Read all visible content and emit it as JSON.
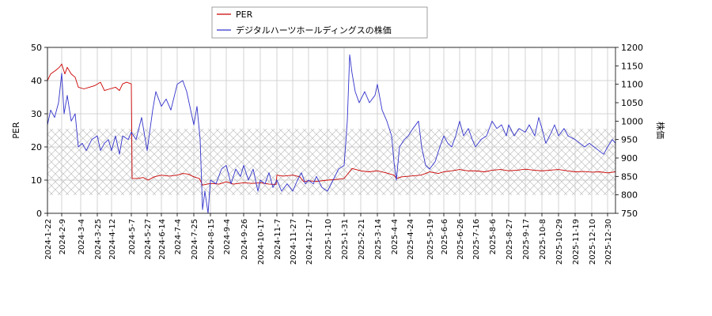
{
  "chart_data": {
    "type": "line",
    "title": "",
    "legend": {
      "placement": "top-center",
      "entries": [
        {
          "name": "PER",
          "color": "#cc0000"
        },
        {
          "name": "デジタルハーツホールディングスの株価",
          "color": "#3333cc"
        }
      ]
    },
    "y_left": {
      "label": "PER",
      "min": 0,
      "max": 50,
      "ticks": [
        0,
        10,
        20,
        30,
        40,
        50
      ]
    },
    "y_right": {
      "label": "株価",
      "min": 750,
      "max": 1200,
      "ticks": [
        750,
        800,
        850,
        900,
        950,
        1000,
        1050,
        1100,
        1150,
        1200
      ]
    },
    "x_range": [
      "2024-01-22",
      "2026-01-09"
    ],
    "x_ticks": [
      "2024-1-22",
      "2024-2-9",
      "2024-3-4",
      "2024-3-25",
      "2024-4-12",
      "2024-5-7",
      "2024-5-27",
      "2024-6-14",
      "2024-7-4",
      "2024-7-25",
      "2024-8-15",
      "2024-9-4",
      "2024-9-26",
      "2024-10-17",
      "2024-11-7",
      "2024-11-27",
      "2024-12-17",
      "2025-1-10",
      "2025-1-31",
      "2025-2-21",
      "2025-3-14",
      "2025-4-4",
      "2025-4-24",
      "2025-5-19",
      "2025-6-6",
      "2025-6-26",
      "2025-7-16",
      "2025-8-6",
      "2025-8-27",
      "2025-9-17",
      "2025-10-8",
      "2025-10-29",
      "2025-11-19",
      "2025-12-10",
      "2025-12-30"
    ],
    "grid": true,
    "band": {
      "from": 5.5,
      "to": 25.5,
      "pattern": "crosshatch"
    },
    "series": [
      {
        "name": "PER",
        "axis": "left",
        "color": "#cc0000",
        "points": [
          [
            "2024-01-22",
            40
          ],
          [
            "2024-01-26",
            42
          ],
          [
            "2024-02-01",
            43
          ],
          [
            "2024-02-06",
            44
          ],
          [
            "2024-02-09",
            45
          ],
          [
            "2024-02-13",
            42
          ],
          [
            "2024-02-16",
            44
          ],
          [
            "2024-02-21",
            42
          ],
          [
            "2024-02-26",
            41
          ],
          [
            "2024-03-01",
            38
          ],
          [
            "2024-03-08",
            37.5
          ],
          [
            "2024-03-15",
            38
          ],
          [
            "2024-03-22",
            38.5
          ],
          [
            "2024-03-29",
            39.5
          ],
          [
            "2024-04-03",
            37
          ],
          [
            "2024-04-10",
            37.5
          ],
          [
            "2024-04-17",
            38
          ],
          [
            "2024-04-22",
            37
          ],
          [
            "2024-04-26",
            39
          ],
          [
            "2024-05-01",
            39.5
          ],
          [
            "2024-05-07",
            39
          ],
          [
            "2024-05-08",
            10.5
          ],
          [
            "2024-05-15",
            10.5
          ],
          [
            "2024-05-22",
            10.8
          ],
          [
            "2024-05-28",
            10
          ],
          [
            "2024-06-05",
            11
          ],
          [
            "2024-06-14",
            11.5
          ],
          [
            "2024-06-24",
            11.2
          ],
          [
            "2024-07-04",
            11.5
          ],
          [
            "2024-07-11",
            12
          ],
          [
            "2024-07-18",
            11.8
          ],
          [
            "2024-07-25",
            11
          ],
          [
            "2024-08-01",
            10.5
          ],
          [
            "2024-08-05",
            8.5
          ],
          [
            "2024-08-15",
            9
          ],
          [
            "2024-08-26",
            8.8
          ],
          [
            "2024-09-04",
            9.5
          ],
          [
            "2024-09-13",
            8.8
          ],
          [
            "2024-09-26",
            9.2
          ],
          [
            "2024-10-07",
            9
          ],
          [
            "2024-10-17",
            9.2
          ],
          [
            "2024-10-28",
            8.8
          ],
          [
            "2024-11-06",
            8.7
          ],
          [
            "2024-11-07",
            11.5
          ],
          [
            "2024-11-15",
            11.2
          ],
          [
            "2024-11-27",
            11.5
          ],
          [
            "2024-12-06",
            11
          ],
          [
            "2024-12-11",
            9.5
          ],
          [
            "2024-12-17",
            9.8
          ],
          [
            "2024-12-27",
            9.6
          ],
          [
            "2025-01-10",
            10
          ],
          [
            "2025-01-21",
            10.2
          ],
          [
            "2025-01-31",
            10.5
          ],
          [
            "2025-02-05",
            12
          ],
          [
            "2025-02-10",
            13.5
          ],
          [
            "2025-02-21",
            12.8
          ],
          [
            "2025-03-03",
            12.5
          ],
          [
            "2025-03-14",
            12.8
          ],
          [
            "2025-03-25",
            12.2
          ],
          [
            "2025-04-04",
            11.5
          ],
          [
            "2025-04-07",
            10.5
          ],
          [
            "2025-04-14",
            11
          ],
          [
            "2025-04-24",
            11.2
          ],
          [
            "2025-05-08",
            11.5
          ],
          [
            "2025-05-14",
            12
          ],
          [
            "2025-05-19",
            12.5
          ],
          [
            "2025-05-30",
            12
          ],
          [
            "2025-06-06",
            12.5
          ],
          [
            "2025-06-16",
            12.8
          ],
          [
            "2025-06-26",
            13.2
          ],
          [
            "2025-07-06",
            12.8
          ],
          [
            "2025-07-16",
            12.8
          ],
          [
            "2025-07-28",
            12.5
          ],
          [
            "2025-08-06",
            13
          ],
          [
            "2025-08-17",
            13.2
          ],
          [
            "2025-08-27",
            12.8
          ],
          [
            "2025-09-07",
            13
          ],
          [
            "2025-09-17",
            13.3
          ],
          [
            "2025-09-28",
            13
          ],
          [
            "2025-10-08",
            12.8
          ],
          [
            "2025-10-18",
            13
          ],
          [
            "2025-10-29",
            13.2
          ],
          [
            "2025-11-09",
            12.8
          ],
          [
            "2025-11-19",
            12.5
          ],
          [
            "2025-11-30",
            12.6
          ],
          [
            "2025-12-10",
            12.4
          ],
          [
            "2025-12-20",
            12.5
          ],
          [
            "2025-12-30",
            12.2
          ],
          [
            "2026-01-09",
            12.5
          ]
        ]
      },
      {
        "name": "デジタルハーツホールディングスの株価",
        "axis": "right",
        "color": "#3333cc",
        "points": [
          [
            "2024-01-22",
            990
          ],
          [
            "2024-01-26",
            1030
          ],
          [
            "2024-01-31",
            1010
          ],
          [
            "2024-02-05",
            1050
          ],
          [
            "2024-02-09",
            1130
          ],
          [
            "2024-02-12",
            1020
          ],
          [
            "2024-02-16",
            1070
          ],
          [
            "2024-02-21",
            1000
          ],
          [
            "2024-02-26",
            1020
          ],
          [
            "2024-03-01",
            930
          ],
          [
            "2024-03-06",
            940
          ],
          [
            "2024-03-11",
            920
          ],
          [
            "2024-03-18",
            950
          ],
          [
            "2024-03-25",
            960
          ],
          [
            "2024-03-29",
            920
          ],
          [
            "2024-04-03",
            940
          ],
          [
            "2024-04-08",
            950
          ],
          [
            "2024-04-12",
            920
          ],
          [
            "2024-04-17",
            960
          ],
          [
            "2024-04-22",
            910
          ],
          [
            "2024-04-26",
            960
          ],
          [
            "2024-05-03",
            950
          ],
          [
            "2024-05-07",
            970
          ],
          [
            "2024-05-13",
            950
          ],
          [
            "2024-05-20",
            1010
          ],
          [
            "2024-05-27",
            920
          ],
          [
            "2024-06-03",
            1030
          ],
          [
            "2024-06-07",
            1080
          ],
          [
            "2024-06-14",
            1040
          ],
          [
            "2024-06-20",
            1060
          ],
          [
            "2024-06-26",
            1030
          ],
          [
            "2024-07-04",
            1100
          ],
          [
            "2024-07-11",
            1110
          ],
          [
            "2024-07-16",
            1080
          ],
          [
            "2024-07-22",
            1020
          ],
          [
            "2024-07-25",
            990
          ],
          [
            "2024-07-29",
            1040
          ],
          [
            "2024-08-02",
            950
          ],
          [
            "2024-08-05",
            760
          ],
          [
            "2024-08-08",
            810
          ],
          [
            "2024-08-12",
            750
          ],
          [
            "2024-08-15",
            840
          ],
          [
            "2024-08-22",
            830
          ],
          [
            "2024-08-29",
            870
          ],
          [
            "2024-09-04",
            880
          ],
          [
            "2024-09-10",
            830
          ],
          [
            "2024-09-16",
            870
          ],
          [
            "2024-09-22",
            850
          ],
          [
            "2024-09-26",
            880
          ],
          [
            "2024-10-02",
            840
          ],
          [
            "2024-10-08",
            870
          ],
          [
            "2024-10-14",
            810
          ],
          [
            "2024-10-17",
            840
          ],
          [
            "2024-10-23",
            830
          ],
          [
            "2024-10-28",
            860
          ],
          [
            "2024-11-02",
            820
          ],
          [
            "2024-11-07",
            840
          ],
          [
            "2024-11-13",
            810
          ],
          [
            "2024-11-20",
            830
          ],
          [
            "2024-11-27",
            810
          ],
          [
            "2024-12-03",
            840
          ],
          [
            "2024-12-08",
            860
          ],
          [
            "2024-12-13",
            830
          ],
          [
            "2024-12-17",
            840
          ],
          [
            "2024-12-23",
            830
          ],
          [
            "2024-12-27",
            850
          ],
          [
            "2025-01-03",
            820
          ],
          [
            "2025-01-10",
            810
          ],
          [
            "2025-01-17",
            840
          ],
          [
            "2025-01-24",
            870
          ],
          [
            "2025-01-31",
            880
          ],
          [
            "2025-02-04",
            1000
          ],
          [
            "2025-02-07",
            1180
          ],
          [
            "2025-02-10",
            1130
          ],
          [
            "2025-02-14",
            1080
          ],
          [
            "2025-02-19",
            1050
          ],
          [
            "2025-02-26",
            1080
          ],
          [
            "2025-03-04",
            1050
          ],
          [
            "2025-03-11",
            1070
          ],
          [
            "2025-03-14",
            1100
          ],
          [
            "2025-03-20",
            1030
          ],
          [
            "2025-03-26",
            1000
          ],
          [
            "2025-04-01",
            960
          ],
          [
            "2025-04-04",
            890
          ],
          [
            "2025-04-07",
            840
          ],
          [
            "2025-04-11",
            930
          ],
          [
            "2025-04-17",
            950
          ],
          [
            "2025-04-22",
            960
          ],
          [
            "2025-04-28",
            980
          ],
          [
            "2025-05-05",
            1000
          ],
          [
            "2025-05-09",
            930
          ],
          [
            "2025-05-14",
            880
          ],
          [
            "2025-05-19",
            870
          ],
          [
            "2025-05-26",
            890
          ],
          [
            "2025-06-01",
            930
          ],
          [
            "2025-06-06",
            960
          ],
          [
            "2025-06-11",
            940
          ],
          [
            "2025-06-16",
            930
          ],
          [
            "2025-06-21",
            960
          ],
          [
            "2025-06-26",
            1000
          ],
          [
            "2025-07-01",
            960
          ],
          [
            "2025-07-07",
            980
          ],
          [
            "2025-07-12",
            950
          ],
          [
            "2025-07-16",
            930
          ],
          [
            "2025-07-23",
            950
          ],
          [
            "2025-07-30",
            960
          ],
          [
            "2025-08-06",
            1000
          ],
          [
            "2025-08-12",
            980
          ],
          [
            "2025-08-18",
            990
          ],
          [
            "2025-08-24",
            960
          ],
          [
            "2025-08-27",
            990
          ],
          [
            "2025-09-03",
            960
          ],
          [
            "2025-09-09",
            980
          ],
          [
            "2025-09-17",
            970
          ],
          [
            "2025-09-22",
            990
          ],
          [
            "2025-09-29",
            960
          ],
          [
            "2025-10-04",
            1010
          ],
          [
            "2025-10-08",
            980
          ],
          [
            "2025-10-13",
            940
          ],
          [
            "2025-10-20",
            970
          ],
          [
            "2025-10-24",
            990
          ],
          [
            "2025-10-29",
            960
          ],
          [
            "2025-11-05",
            980
          ],
          [
            "2025-11-10",
            960
          ],
          [
            "2025-11-19",
            950
          ],
          [
            "2025-11-25",
            940
          ],
          [
            "2025-12-01",
            930
          ],
          [
            "2025-12-07",
            940
          ],
          [
            "2025-12-13",
            930
          ],
          [
            "2025-12-19",
            920
          ],
          [
            "2025-12-25",
            910
          ],
          [
            "2025-12-30",
            930
          ],
          [
            "2026-01-05",
            950
          ],
          [
            "2026-01-09",
            940
          ]
        ]
      }
    ]
  }
}
